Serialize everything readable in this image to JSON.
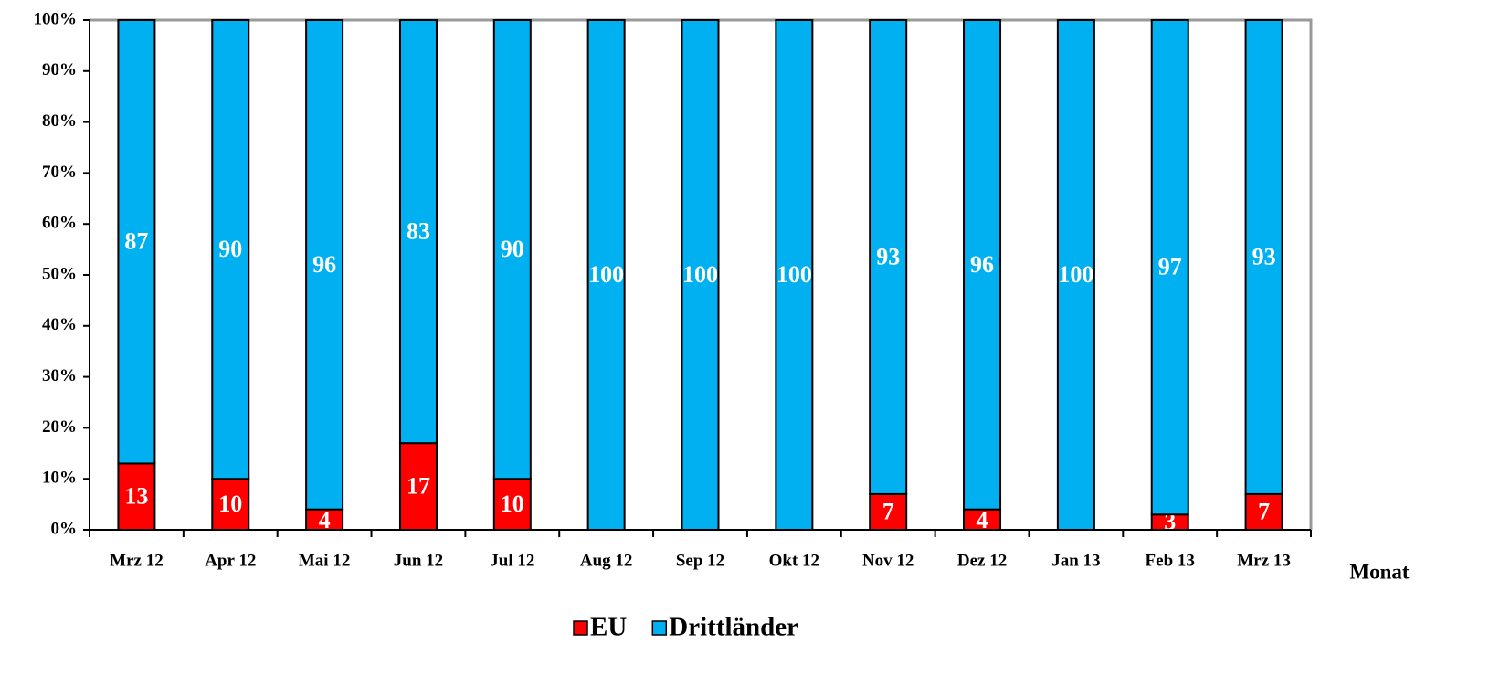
{
  "chart_data": {
    "type": "bar",
    "stacked": true,
    "categories": [
      "Mrz 12",
      "Apr 12",
      "Mai 12",
      "Jun 12",
      "Jul 12",
      "Aug 12",
      "Sep 12",
      "Okt 12",
      "Nov 12",
      "Dez 12",
      "Jan 13",
      "Feb 13",
      "Mrz 13"
    ],
    "series": [
      {
        "name": "EU",
        "color": "#ff0000",
        "values": [
          13,
          10,
          4,
          17,
          10,
          0,
          0,
          0,
          7,
          4,
          0,
          3,
          7
        ]
      },
      {
        "name": "Drittländer",
        "color": "#00b0f0",
        "values": [
          87,
          90,
          96,
          83,
          90,
          100,
          100,
          100,
          93,
          96,
          100,
          97,
          93
        ]
      }
    ],
    "x_label": "Monat",
    "ylim": [
      0,
      100
    ],
    "yticks": [
      {
        "value": 0,
        "label": "0%"
      },
      {
        "value": 10,
        "label": "10%"
      },
      {
        "value": 20,
        "label": "20%"
      },
      {
        "value": 30,
        "label": "30%"
      },
      {
        "value": 40,
        "label": "40%"
      },
      {
        "value": 50,
        "label": "50%"
      },
      {
        "value": 60,
        "label": "60%"
      },
      {
        "value": 70,
        "label": "70%"
      },
      {
        "value": 80,
        "label": "80%"
      },
      {
        "value": 90,
        "label": "90%"
      },
      {
        "value": 100,
        "label": "100%"
      }
    ],
    "legend": "bottom"
  }
}
